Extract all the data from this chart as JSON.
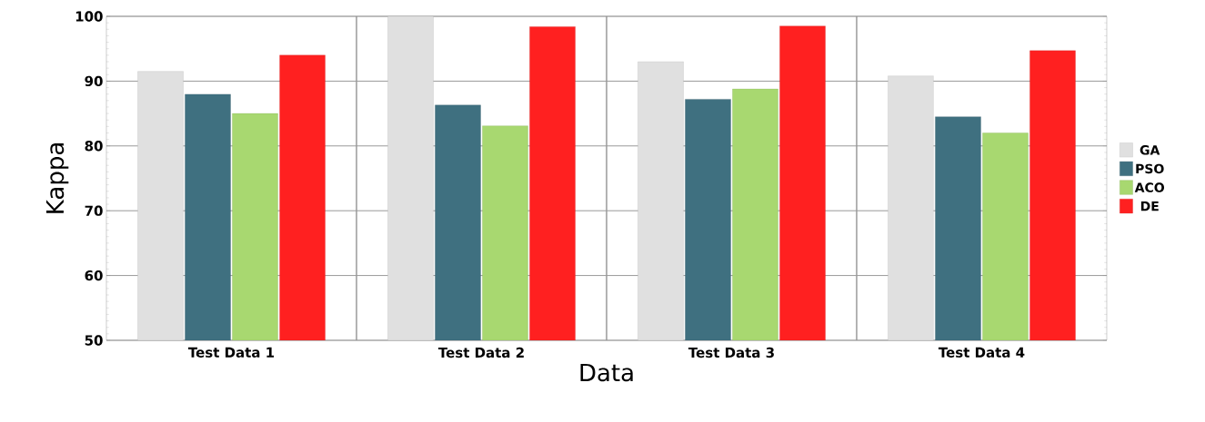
{
  "chart_data": {
    "type": "bar",
    "xlabel": "Data",
    "ylabel": "Kappa",
    "categories": [
      "Test Data 1",
      "Test Data 2",
      "Test Data 3",
      "Test Data 4"
    ],
    "series": [
      {
        "name": "GA",
        "color": "#e0e0e0",
        "values": [
          91.5,
          100,
          93,
          90.8
        ]
      },
      {
        "name": "PSO",
        "color": "#3f7080",
        "values": [
          88,
          86.3,
          87.2,
          84.5
        ]
      },
      {
        "name": "ACO",
        "color": "#a8d870",
        "values": [
          85,
          83.1,
          88.8,
          82
        ]
      },
      {
        "name": "DE",
        "color": "#ff2020",
        "values": [
          94,
          98.4,
          98.5,
          94.7
        ]
      }
    ],
    "ylim": [
      50,
      100
    ],
    "yticks": [
      50,
      60,
      70,
      80,
      90,
      100
    ],
    "grid": true,
    "legend": "right"
  }
}
